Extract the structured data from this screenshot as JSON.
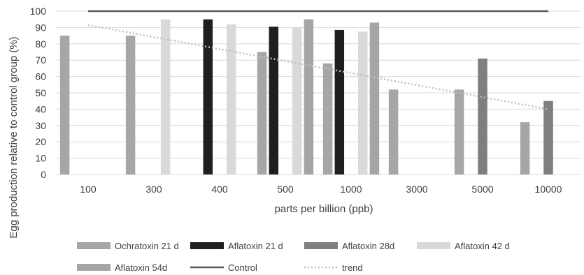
{
  "chart_data": {
    "type": "bar",
    "title": "",
    "xlabel": "parts per billion (ppb)",
    "ylabel": "Egg production relative to control group (%)",
    "ylim": [
      0,
      100
    ],
    "yticks": [
      0,
      10,
      20,
      30,
      40,
      50,
      60,
      70,
      80,
      90,
      100
    ],
    "grid": true,
    "legend_position": "bottom",
    "categories": [
      "100",
      "300",
      "400",
      "500",
      "1000",
      "3000",
      "5000",
      "10000"
    ],
    "series": [
      {
        "name": "Ochratoxin 21 d",
        "kind": "bar",
        "color": "#a6a6a6",
        "values": [
          85,
          85,
          null,
          75,
          68,
          52,
          52,
          32
        ]
      },
      {
        "name": "Aflatoxin 21 d",
        "kind": "bar",
        "color": "#1f1f1f",
        "values": [
          null,
          null,
          95,
          90.5,
          88.5,
          null,
          null,
          null
        ]
      },
      {
        "name": "Aflatoxin 28d",
        "kind": "bar",
        "color": "#7f7f7f",
        "values": [
          null,
          null,
          null,
          null,
          null,
          null,
          71,
          45
        ]
      },
      {
        "name": "Aflatoxin 42 d",
        "kind": "bar",
        "color": "#d9d9d9",
        "values": [
          null,
          95,
          92,
          90,
          87.5,
          null,
          null,
          null
        ]
      },
      {
        "name": "Aflatoxin 54d",
        "kind": "bar",
        "color": "#a5a5a5",
        "values": [
          null,
          null,
          null,
          95,
          93,
          null,
          null,
          null
        ]
      },
      {
        "name": "Control",
        "kind": "line",
        "color": "#595959",
        "values": [
          100,
          100,
          100,
          100,
          100,
          100,
          100,
          100
        ]
      },
      {
        "name": "trend",
        "kind": "trendline",
        "color": "#bfbfbf",
        "start": 91.5,
        "end": 40
      }
    ]
  }
}
